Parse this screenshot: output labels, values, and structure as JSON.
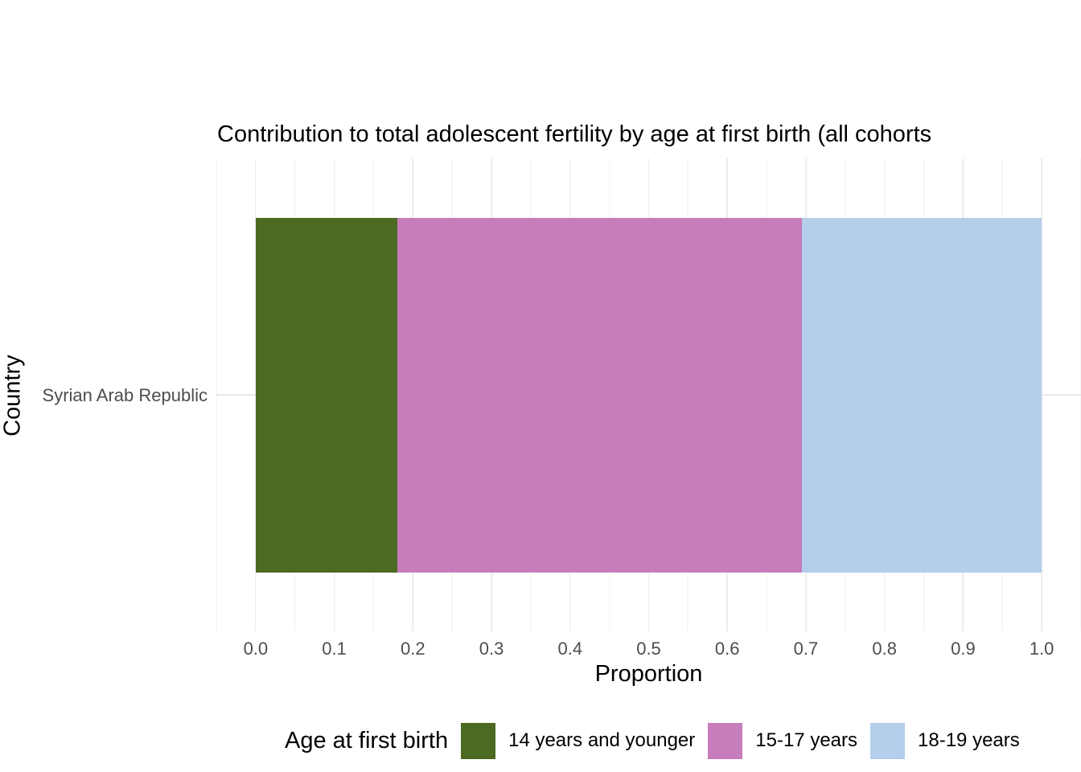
{
  "chart_data": {
    "type": "bar",
    "orientation": "horizontal",
    "stacked": true,
    "title": "Contribution to total adolescent fertility by age at first birth (all cohorts",
    "xlabel": "Proportion",
    "ylabel": "Country",
    "categories": [
      "Syrian Arab Republic"
    ],
    "series": [
      {
        "name": "14 years and younger",
        "color": "#4C6A21",
        "values": [
          0.18
        ]
      },
      {
        "name": "15-17 years",
        "color": "#C77CBC",
        "values": [
          0.515
        ]
      },
      {
        "name": "18-19 years",
        "color": "#B5CEEC",
        "values": [
          0.305
        ]
      }
    ],
    "axes": {
      "xlim": [
        -0.05,
        1.05
      ],
      "bar_x_range": [
        0,
        1
      ],
      "x_major_ticks": [
        0,
        0.1,
        0.2,
        0.3,
        0.4,
        0.5,
        0.6,
        0.7,
        0.8,
        0.9,
        1
      ],
      "x_tick_labels": [
        "0.0",
        "0.1",
        "0.2",
        "0.3",
        "0.4",
        "0.5",
        "0.6",
        "0.7",
        "0.8",
        "0.9",
        "1.0"
      ],
      "x_minor_ticks": [
        -0.05,
        0.05,
        0.15,
        0.25,
        0.35,
        0.45,
        0.55,
        0.65,
        0.75,
        0.85,
        0.95,
        1.05
      ],
      "grid": true
    },
    "legend": {
      "title": "Age at first birth",
      "position": "bottom"
    },
    "style": {
      "background": "#FFFFFF",
      "grid_major_color": "#EBEBEB",
      "grid_minor_color": "#EFEFEF",
      "tick_label_color": "#4D4D4D",
      "text_color": "#000000"
    }
  }
}
